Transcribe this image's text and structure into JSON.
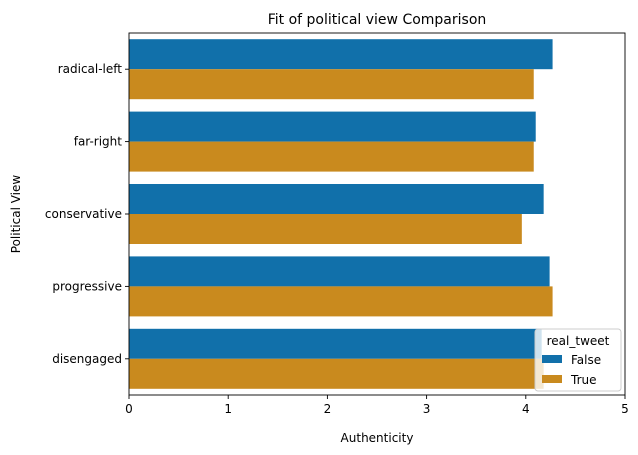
{
  "chart_data": {
    "type": "bar",
    "orientation": "horizontal",
    "title": "Fit of political view Comparison",
    "xlabel": "Authenticity",
    "ylabel": "Political View",
    "categories": [
      "radical-left",
      "far-right",
      "conservative",
      "progressive",
      "disengaged"
    ],
    "series": [
      {
        "name": "False",
        "color": "#1170aa",
        "values": [
          4.27,
          4.1,
          4.18,
          4.24,
          4.16
        ]
      },
      {
        "name": "True",
        "color": "#c98a1e",
        "values": [
          4.08,
          4.08,
          3.96,
          4.27,
          4.18
        ]
      }
    ],
    "xlim": [
      0,
      5
    ],
    "xticks": [
      "0",
      "1",
      "2",
      "3",
      "4",
      "5"
    ],
    "grid": false,
    "legend": {
      "title": "real_tweet",
      "placement": "lower-right"
    }
  }
}
